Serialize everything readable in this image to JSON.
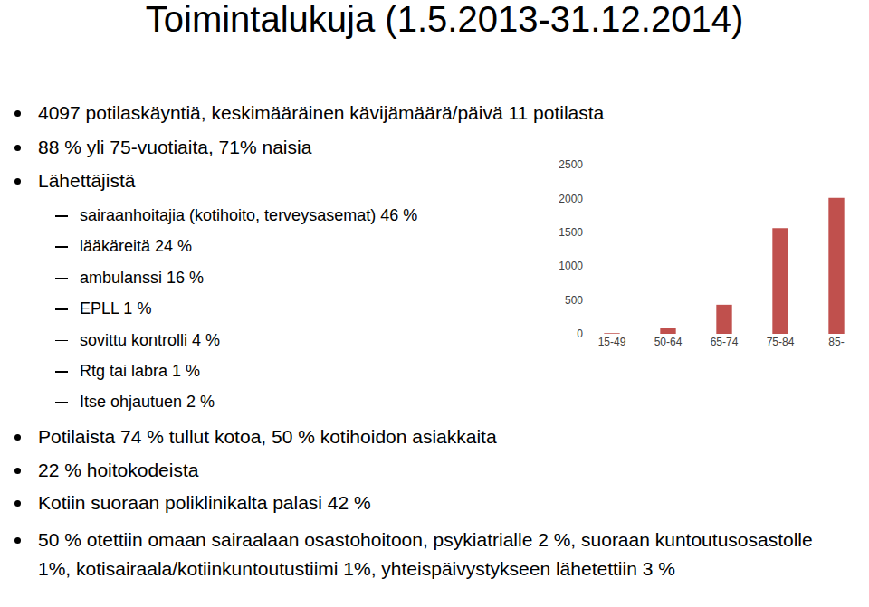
{
  "slide": {
    "title": "Toimintalukuja (1.5.2013-31.12.2014)",
    "bullets": [
      {
        "text": "4097 potilaskäyntiä, keskimääräinen kävijämäärä/päivä 11 potilasta"
      },
      {
        "text": "88 % yli 75-vuotiaita, 71% naisia"
      },
      {
        "text": "Lähettäjistä",
        "sub": [
          "sairaanhoitajia (kotihoito, terveysasemat) 46 %",
          "lääkäreitä 24 %",
          "ambulanssi 16 %",
          "EPLL 1 %",
          "sovittu kontrolli 4 %",
          "Rtg tai labra 1 %",
          "Itse ohjautuen 2 %"
        ]
      },
      {
        "text": "Potilaista 74 % tullut kotoa, 50 % kotihoidon asiakkaita"
      },
      {
        "text": "22 % hoitokodeista"
      },
      {
        "text": "Kotiin suoraan poliklinikalta palasi 42 %"
      },
      {
        "text": "50 % otettiin omaan sairaalaan osastohoitoon, psykiatrialle 2 %, suoraan kuntoutusosastolle 1%, kotisairaala/kotiinkuntoutustiimi 1%, yhteispäivystykseen lähetettiin 3 %"
      }
    ]
  },
  "chart_data": {
    "type": "bar",
    "categories": [
      "15-49",
      "50-64",
      "65-74",
      "75-84",
      "85-"
    ],
    "values": [
      10,
      80,
      430,
      1560,
      2010
    ],
    "color": "#c0504d",
    "ylim": [
      0,
      2500
    ],
    "yticks": [
      0,
      500,
      1000,
      1500,
      2000,
      2500
    ],
    "grid": false
  }
}
